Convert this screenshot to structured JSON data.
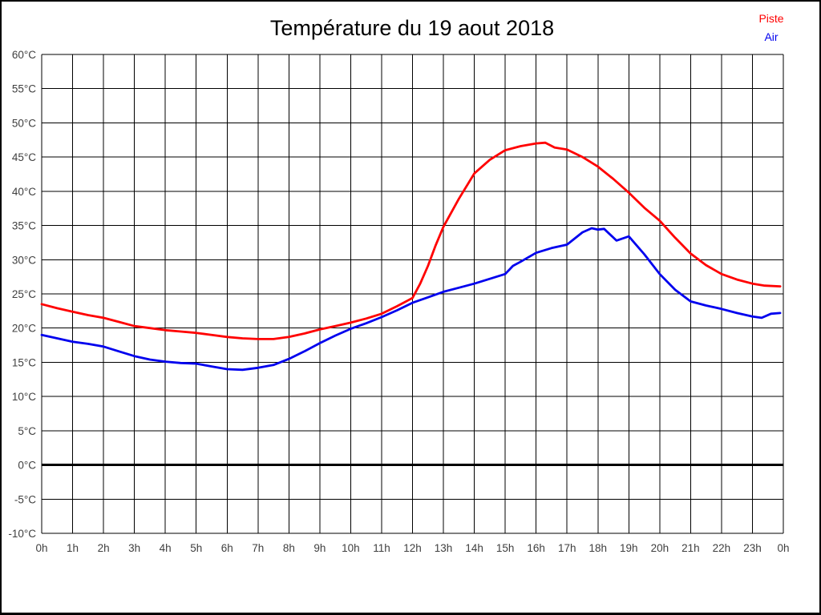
{
  "window": {
    "title": "Température du 19 aout 2018"
  },
  "chart_data": {
    "type": "line",
    "title": "Température du 19 aout 2018",
    "xlabel": "",
    "ylabel": "",
    "xlim": [
      0,
      24
    ],
    "ylim": [
      -10,
      60
    ],
    "grid": true,
    "zero_line_bold": true,
    "legend_position": "top-right",
    "x_ticks": [
      0,
      1,
      2,
      3,
      4,
      5,
      6,
      7,
      8,
      9,
      10,
      11,
      12,
      13,
      14,
      15,
      16,
      17,
      18,
      19,
      20,
      21,
      22,
      23,
      24
    ],
    "x_tick_labels": [
      "0h",
      "1h",
      "2h",
      "3h",
      "4h",
      "5h",
      "6h",
      "7h",
      "8h",
      "9h",
      "10h",
      "11h",
      "12h",
      "13h",
      "14h",
      "15h",
      "16h",
      "17h",
      "18h",
      "19h",
      "20h",
      "21h",
      "22h",
      "23h",
      "0h"
    ],
    "y_ticks": [
      60,
      55,
      50,
      45,
      40,
      35,
      30,
      25,
      20,
      15,
      10,
      5,
      0,
      -5,
      -10
    ],
    "y_tick_labels": [
      "60°C",
      "55°C",
      "50°C",
      "45°C",
      "40°C",
      "35°C",
      "30°C",
      "25°C",
      "20°C",
      "15°C",
      "10°C",
      "5°C",
      "0°C",
      "-5°C",
      "-10°C"
    ],
    "tick_label_color": "#3f3f3f",
    "grid_color": "#000000",
    "series": [
      {
        "name": "Piste",
        "color": "#ff0000",
        "x": [
          0,
          0.5,
          1,
          1.5,
          2,
          2.5,
          3,
          3.5,
          4,
          4.5,
          5,
          5.5,
          6,
          6.5,
          7,
          7.5,
          8,
          8.5,
          9,
          9.5,
          10,
          10.5,
          11,
          11.5,
          12,
          12.25,
          12.5,
          12.75,
          13,
          13.5,
          14,
          14.5,
          15,
          15.5,
          16,
          16.3,
          16.6,
          17,
          17.5,
          18,
          18.5,
          19,
          19.5,
          20,
          20.5,
          21,
          21.5,
          22,
          22.5,
          23,
          23.4,
          23.9
        ],
        "y": [
          23.5,
          22.9,
          22.4,
          21.9,
          21.5,
          20.9,
          20.3,
          20.0,
          19.7,
          19.5,
          19.3,
          19.0,
          18.7,
          18.5,
          18.4,
          18.4,
          18.7,
          19.2,
          19.8,
          20.3,
          20.8,
          21.4,
          22.1,
          23.2,
          24.4,
          26.5,
          29.1,
          32.1,
          34.8,
          38.9,
          42.6,
          44.6,
          46.0,
          46.6,
          47.0,
          47.1,
          46.4,
          46.1,
          45.0,
          43.6,
          41.8,
          39.8,
          37.6,
          35.7,
          33.2,
          30.9,
          29.2,
          27.9,
          27.1,
          26.5,
          26.2,
          26.1
        ]
      },
      {
        "name": "Air",
        "color": "#0000ee",
        "x": [
          0,
          0.5,
          1,
          1.5,
          2,
          2.5,
          3,
          3.5,
          4,
          4.5,
          5,
          5.5,
          6,
          6.5,
          7,
          7.5,
          8,
          8.5,
          9,
          9.5,
          10,
          10.5,
          11,
          11.5,
          12,
          12.5,
          13,
          13.5,
          14,
          14.5,
          15,
          15.25,
          15.5,
          16,
          16.5,
          17,
          17.5,
          17.8,
          18,
          18.2,
          18.6,
          19,
          19.5,
          20,
          20.5,
          21,
          21.5,
          22,
          22.5,
          23,
          23.3,
          23.6,
          23.9
        ],
        "y": [
          19.0,
          18.5,
          18.0,
          17.7,
          17.3,
          16.6,
          15.9,
          15.4,
          15.1,
          14.9,
          14.8,
          14.4,
          14.0,
          13.9,
          14.2,
          14.6,
          15.5,
          16.6,
          17.8,
          18.9,
          19.9,
          20.7,
          21.6,
          22.6,
          23.7,
          24.5,
          25.3,
          25.9,
          26.5,
          27.2,
          27.9,
          29.1,
          29.7,
          31.0,
          31.7,
          32.2,
          34.0,
          34.6,
          34.4,
          34.5,
          32.8,
          33.4,
          30.8,
          27.9,
          25.6,
          23.9,
          23.3,
          22.8,
          22.2,
          21.7,
          21.5,
          22.1,
          22.2
        ]
      }
    ]
  }
}
